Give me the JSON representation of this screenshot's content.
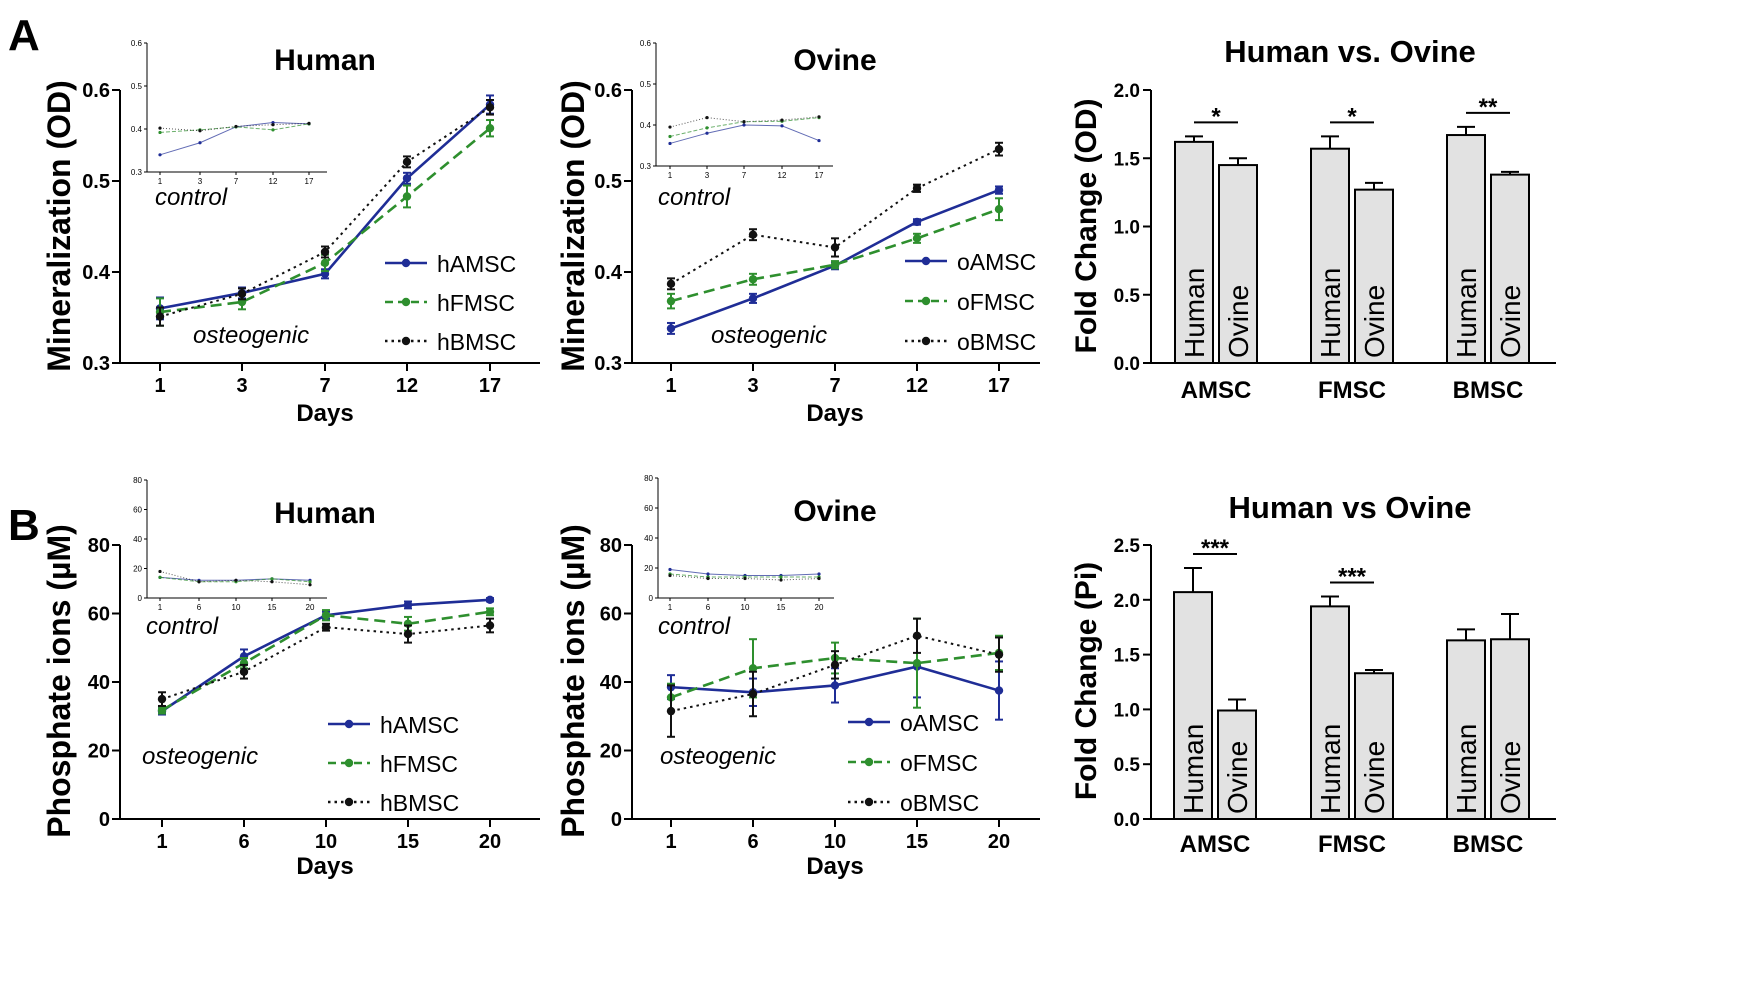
{
  "panel_labels": [
    "A",
    "B"
  ],
  "series_styles": {
    "AMSC": {
      "color": "#1f2d96",
      "dash": ""
    },
    "FMSC": {
      "color": "#2e8f2e",
      "dash": "dashed"
    },
    "BMSC": {
      "color": "#111111",
      "dash": "dotted"
    }
  },
  "chart_data": [
    {
      "type": "line",
      "id": "A_human",
      "title": "Human",
      "xlabel": "Days",
      "ylabel": "Mineralization (OD)",
      "categories": [
        "1",
        "3",
        "7",
        "12",
        "17"
      ],
      "ylim": [
        0.3,
        0.6
      ],
      "yticks": [
        "0.3",
        "0.4",
        "0.5",
        "0.6"
      ],
      "annotations": [
        "osteogenic"
      ],
      "series": [
        {
          "name": "hAMSC",
          "key": "AMSC",
          "values": [
            0.36,
            0.377,
            0.398,
            0.503,
            0.584
          ],
          "errors": [
            0.012,
            0.006,
            0.005,
            0.006,
            0.01
          ]
        },
        {
          "name": "hFMSC",
          "key": "FMSC",
          "values": [
            0.356,
            0.367,
            0.41,
            0.483,
            0.558
          ],
          "errors": [
            0.015,
            0.008,
            0.009,
            0.012,
            0.009
          ]
        },
        {
          "name": "hBMSC",
          "key": "BMSC",
          "values": [
            0.351,
            0.376,
            0.422,
            0.521,
            0.581
          ],
          "errors": [
            0.01,
            0.006,
            0.006,
            0.006,
            0.008
          ]
        }
      ],
      "inset": {
        "label": "control",
        "categories": [
          "1",
          "3",
          "7",
          "12",
          "17"
        ],
        "ylim": [
          0.3,
          0.6
        ],
        "yticks": [
          "0.3",
          "0.4",
          "0.5",
          "0.6"
        ],
        "series": [
          {
            "key": "AMSC",
            "values": [
              0.34,
              0.368,
              0.405,
              0.415,
              0.412
            ]
          },
          {
            "key": "FMSC",
            "values": [
              0.392,
              0.398,
              0.405,
              0.398,
              0.412
            ]
          },
          {
            "key": "BMSC",
            "values": [
              0.402,
              0.396,
              0.406,
              0.41,
              0.413
            ]
          }
        ]
      }
    },
    {
      "type": "line",
      "id": "A_ovine",
      "title": "Ovine",
      "xlabel": "Days",
      "ylabel": "Mineralization (OD)",
      "categories": [
        "1",
        "3",
        "7",
        "12",
        "17"
      ],
      "ylim": [
        0.3,
        0.6
      ],
      "yticks": [
        "0.3",
        "0.4",
        "0.5",
        "0.6"
      ],
      "annotations": [
        "osteogenic"
      ],
      "series": [
        {
          "name": "oAMSC",
          "key": "AMSC",
          "values": [
            0.338,
            0.371,
            0.407,
            0.455,
            0.49
          ],
          "errors": [
            0.006,
            0.005,
            0.004,
            0.003,
            0.004
          ]
        },
        {
          "name": "oFMSC",
          "key": "FMSC",
          "values": [
            0.368,
            0.392,
            0.408,
            0.437,
            0.469
          ],
          "errors": [
            0.008,
            0.006,
            0.004,
            0.005,
            0.012
          ]
        },
        {
          "name": "oBMSC",
          "key": "BMSC",
          "values": [
            0.387,
            0.441,
            0.427,
            0.492,
            0.535
          ],
          "errors": [
            0.006,
            0.006,
            0.01,
            0.004,
            0.007
          ]
        }
      ],
      "inset": {
        "label": "control",
        "categories": [
          "1",
          "3",
          "7",
          "12",
          "17"
        ],
        "ylim": [
          0.3,
          0.6
        ],
        "yticks": [
          "0.3",
          "0.4",
          "0.5",
          "0.6"
        ],
        "series": [
          {
            "key": "AMSC",
            "values": [
              0.355,
              0.38,
              0.4,
              0.398,
              0.362
            ]
          },
          {
            "key": "FMSC",
            "values": [
              0.372,
              0.393,
              0.408,
              0.409,
              0.418
            ]
          },
          {
            "key": "BMSC",
            "values": [
              0.395,
              0.418,
              0.408,
              0.412,
              0.42
            ]
          }
        ]
      }
    },
    {
      "type": "bar",
      "id": "A_fold",
      "title": "Human vs. Ovine",
      "ylabel": "Fold Change (OD)",
      "groups": [
        "AMSC",
        "FMSC",
        "BMSC"
      ],
      "bar_labels": [
        "Human",
        "Ovine"
      ],
      "ylim": [
        0.0,
        2.0
      ],
      "yticks": [
        "0.0",
        "0.5",
        "1.0",
        "1.5",
        "2.0"
      ],
      "values": [
        [
          1.62,
          1.45
        ],
        [
          1.57,
          1.27
        ],
        [
          1.67,
          1.38
        ]
      ],
      "errors": [
        [
          0.04,
          0.05
        ],
        [
          0.09,
          0.05
        ],
        [
          0.06,
          0.02
        ]
      ],
      "significance": [
        "*",
        "*",
        "**"
      ]
    },
    {
      "type": "line",
      "id": "B_human",
      "title": "Human",
      "xlabel": "Days",
      "ylabel": "Phosphate ions (µM)",
      "categories": [
        "1",
        "6",
        "10",
        "15",
        "20"
      ],
      "ylim": [
        0,
        80
      ],
      "yticks": [
        "0",
        "20",
        "40",
        "60",
        "80"
      ],
      "annotations": [
        "osteogenic"
      ],
      "series": [
        {
          "name": "hAMSC",
          "key": "AMSC",
          "values": [
            31.5,
            47.5,
            59.5,
            62.5,
            64.0
          ],
          "errors": [
            1.0,
            2.0,
            1.0,
            1.0,
            0.5
          ]
        },
        {
          "name": "hFMSC",
          "key": "FMSC",
          "values": [
            31.8,
            45.5,
            59.5,
            57.0,
            60.5
          ],
          "errors": [
            1.0,
            1.5,
            1.5,
            2.0,
            1.0
          ]
        },
        {
          "name": "hBMSC",
          "key": "BMSC",
          "values": [
            35.0,
            43.0,
            56.0,
            54.0,
            56.5
          ],
          "errors": [
            2.0,
            2.0,
            1.0,
            2.5,
            2.0
          ]
        }
      ],
      "inset": {
        "label": "control",
        "categories": [
          "1",
          "6",
          "10",
          "15",
          "20"
        ],
        "ylim": [
          0,
          80
        ],
        "yticks": [
          "0",
          "20",
          "40",
          "60",
          "80"
        ],
        "series": [
          {
            "key": "AMSC",
            "values": [
              14,
              12,
              12,
              13,
              12
            ]
          },
          {
            "key": "FMSC",
            "values": [
              14,
              11,
              11,
              13,
              11
            ]
          },
          {
            "key": "BMSC",
            "values": [
              18,
              11,
              12,
              11,
              9
            ]
          }
        ]
      }
    },
    {
      "type": "line",
      "id": "B_ovine",
      "title": "Ovine",
      "xlabel": "Days",
      "ylabel": "Phosphate ions (µM)",
      "categories": [
        "1",
        "6",
        "10",
        "15",
        "20"
      ],
      "ylim": [
        0,
        80
      ],
      "yticks": [
        "0",
        "20",
        "40",
        "60",
        "80"
      ],
      "annotations": [
        "osteogenic"
      ],
      "series": [
        {
          "name": "oAMSC",
          "key": "AMSC",
          "values": [
            38.5,
            37.0,
            39.0,
            44.5,
            37.5
          ],
          "errors": [
            3.5,
            4.0,
            5.0,
            9.0,
            8.5
          ]
        },
        {
          "name": "oFMSC",
          "key": "FMSC",
          "values": [
            35.5,
            44.0,
            47.0,
            45.5,
            48.5
          ],
          "errors": [
            4.0,
            8.5,
            4.5,
            13.0,
            5.0
          ]
        },
        {
          "name": "oBMSC",
          "key": "BMSC",
          "values": [
            31.5,
            36.5,
            45.0,
            53.5,
            48.0
          ],
          "errors": [
            7.5,
            6.5,
            4.0,
            5.0,
            5.0
          ]
        }
      ],
      "inset": {
        "label": "control",
        "categories": [
          "1",
          "6",
          "10",
          "15",
          "20"
        ],
        "ylim": [
          0,
          80
        ],
        "yticks": [
          "0",
          "20",
          "40",
          "60",
          "80"
        ],
        "series": [
          {
            "key": "AMSC",
            "values": [
              19,
              16,
              15,
              15,
              16
            ]
          },
          {
            "key": "FMSC",
            "values": [
              16,
              14,
              14,
              14,
              14
            ]
          },
          {
            "key": "BMSC",
            "values": [
              15,
              13,
              13,
              12,
              13
            ]
          }
        ]
      }
    },
    {
      "type": "bar",
      "id": "B_fold",
      "title": "Human vs Ovine",
      "ylabel": "Fold Change (Pi)",
      "groups": [
        "AMSC",
        "FMSC",
        "BMSC"
      ],
      "bar_labels": [
        "Human",
        "Ovine"
      ],
      "ylim": [
        0.0,
        2.5
      ],
      "yticks": [
        "0.0",
        "0.5",
        "1.0",
        "1.5",
        "2.0",
        "2.5"
      ],
      "values": [
        [
          2.07,
          0.99
        ],
        [
          1.94,
          1.33
        ],
        [
          1.63,
          1.64
        ]
      ],
      "errors": [
        [
          0.22,
          0.1
        ],
        [
          0.09,
          0.03
        ],
        [
          0.1,
          0.23
        ]
      ],
      "significance": [
        "***",
        "***",
        ""
      ]
    }
  ]
}
